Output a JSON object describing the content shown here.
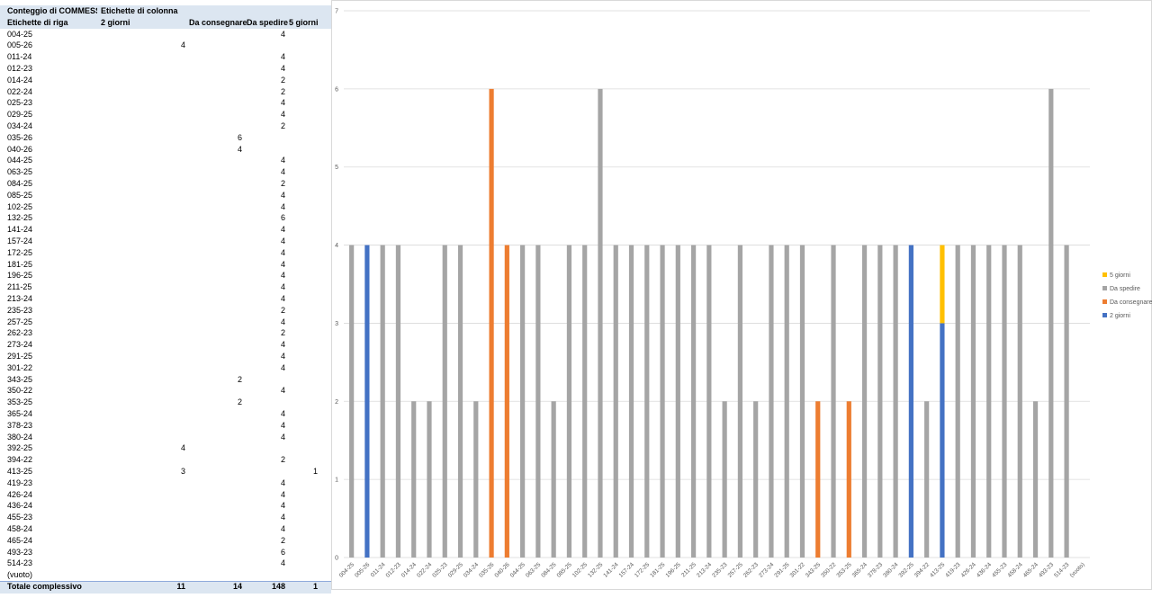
{
  "table": {
    "title": "Conteggio di COMMESSE",
    "column_label": "Etichette di colonna",
    "row_label": "Etichette di riga",
    "columns": [
      "2 giorni",
      "Da consegnare",
      "Da spedire",
      "5 giorni"
    ],
    "rows": [
      [
        "004-25",
        null,
        null,
        4,
        null
      ],
      [
        "005-26",
        4,
        null,
        null,
        null
      ],
      [
        "011-24",
        null,
        null,
        4,
        null
      ],
      [
        "012-23",
        null,
        null,
        4,
        null
      ],
      [
        "014-24",
        null,
        null,
        2,
        null
      ],
      [
        "022-24",
        null,
        null,
        2,
        null
      ],
      [
        "025-23",
        null,
        null,
        4,
        null
      ],
      [
        "029-25",
        null,
        null,
        4,
        null
      ],
      [
        "034-24",
        null,
        null,
        2,
        null
      ],
      [
        "035-26",
        null,
        6,
        null,
        null
      ],
      [
        "040-26",
        null,
        4,
        null,
        null
      ],
      [
        "044-25",
        null,
        null,
        4,
        null
      ],
      [
        "063-25",
        null,
        null,
        4,
        null
      ],
      [
        "084-25",
        null,
        null,
        2,
        null
      ],
      [
        "085-25",
        null,
        null,
        4,
        null
      ],
      [
        "102-25",
        null,
        null,
        4,
        null
      ],
      [
        "132-25",
        null,
        null,
        6,
        null
      ],
      [
        "141-24",
        null,
        null,
        4,
        null
      ],
      [
        "157-24",
        null,
        null,
        4,
        null
      ],
      [
        "172-25",
        null,
        null,
        4,
        null
      ],
      [
        "181-25",
        null,
        null,
        4,
        null
      ],
      [
        "196-25",
        null,
        null,
        4,
        null
      ],
      [
        "211-25",
        null,
        null,
        4,
        null
      ],
      [
        "213-24",
        null,
        null,
        4,
        null
      ],
      [
        "235-23",
        null,
        null,
        2,
        null
      ],
      [
        "257-25",
        null,
        null,
        4,
        null
      ],
      [
        "262-23",
        null,
        null,
        2,
        null
      ],
      [
        "273-24",
        null,
        null,
        4,
        null
      ],
      [
        "291-25",
        null,
        null,
        4,
        null
      ],
      [
        "301-22",
        null,
        null,
        4,
        null
      ],
      [
        "343-25",
        null,
        2,
        null,
        null
      ],
      [
        "350-22",
        null,
        null,
        4,
        null
      ],
      [
        "353-25",
        null,
        2,
        null,
        null
      ],
      [
        "365-24",
        null,
        null,
        4,
        null
      ],
      [
        "378-23",
        null,
        null,
        4,
        null
      ],
      [
        "380-24",
        null,
        null,
        4,
        null
      ],
      [
        "392-25",
        4,
        null,
        null,
        null
      ],
      [
        "394-22",
        null,
        null,
        2,
        null
      ],
      [
        "413-25",
        3,
        null,
        null,
        1
      ],
      [
        "419-23",
        null,
        null,
        4,
        null
      ],
      [
        "426-24",
        null,
        null,
        4,
        null
      ],
      [
        "436-24",
        null,
        null,
        4,
        null
      ],
      [
        "455-23",
        null,
        null,
        4,
        null
      ],
      [
        "458-24",
        null,
        null,
        4,
        null
      ],
      [
        "465-24",
        null,
        null,
        2,
        null
      ],
      [
        "493-23",
        null,
        null,
        6,
        null
      ],
      [
        "514-23",
        null,
        null,
        4,
        null
      ],
      [
        "(vuoto)",
        null,
        null,
        null,
        null
      ]
    ],
    "total": [
      "Totale complessivo",
      11,
      14,
      148,
      1
    ]
  },
  "chart_data": {
    "type": "stacked_bar",
    "categories": [
      "004-25",
      "005-26",
      "011-24",
      "012-23",
      "014-24",
      "022-24",
      "025-23",
      "029-25",
      "034-24",
      "035-26",
      "040-26",
      "044-25",
      "063-25",
      "084-25",
      "085-25",
      "102-25",
      "132-25",
      "141-24",
      "157-24",
      "172-25",
      "181-25",
      "196-25",
      "211-25",
      "213-24",
      "235-23",
      "257-25",
      "262-23",
      "273-24",
      "291-25",
      "301-22",
      "343-25",
      "350-22",
      "353-25",
      "365-24",
      "378-23",
      "380-24",
      "392-25",
      "394-22",
      "413-25",
      "419-23",
      "426-24",
      "436-24",
      "455-23",
      "458-24",
      "465-24",
      "493-23",
      "514-23",
      "(vuoto)"
    ],
    "series": [
      {
        "name": "2 giorni",
        "color": "#4472c4",
        "values": [
          null,
          4,
          null,
          null,
          null,
          null,
          null,
          null,
          null,
          null,
          null,
          null,
          null,
          null,
          null,
          null,
          null,
          null,
          null,
          null,
          null,
          null,
          null,
          null,
          null,
          null,
          null,
          null,
          null,
          null,
          null,
          null,
          null,
          null,
          null,
          null,
          4,
          null,
          3,
          null,
          null,
          null,
          null,
          null,
          null,
          null,
          null,
          null
        ]
      },
      {
        "name": "Da consegnare",
        "color": "#ed7d31",
        "values": [
          null,
          null,
          null,
          null,
          null,
          null,
          null,
          null,
          null,
          6,
          4,
          null,
          null,
          null,
          null,
          null,
          null,
          null,
          null,
          null,
          null,
          null,
          null,
          null,
          null,
          null,
          null,
          null,
          null,
          null,
          2,
          null,
          2,
          null,
          null,
          null,
          null,
          null,
          null,
          null,
          null,
          null,
          null,
          null,
          null,
          null,
          null,
          null
        ]
      },
      {
        "name": "Da spedire",
        "color": "#a5a5a5",
        "values": [
          4,
          null,
          4,
          4,
          2,
          2,
          4,
          4,
          2,
          null,
          null,
          4,
          4,
          2,
          4,
          4,
          6,
          4,
          4,
          4,
          4,
          4,
          4,
          4,
          2,
          4,
          2,
          4,
          4,
          4,
          null,
          4,
          null,
          4,
          4,
          4,
          null,
          2,
          null,
          4,
          4,
          4,
          4,
          4,
          2,
          6,
          4,
          null
        ]
      },
      {
        "name": "5 giorni",
        "color": "#ffc000",
        "values": [
          null,
          null,
          null,
          null,
          null,
          null,
          null,
          null,
          null,
          null,
          null,
          null,
          null,
          null,
          null,
          null,
          null,
          null,
          null,
          null,
          null,
          null,
          null,
          null,
          null,
          null,
          null,
          null,
          null,
          null,
          null,
          null,
          null,
          null,
          null,
          null,
          null,
          null,
          1,
          null,
          null,
          null,
          null,
          null,
          null,
          null,
          null,
          null
        ]
      }
    ],
    "ylim": [
      0,
      7
    ],
    "yticks": [
      0,
      1,
      2,
      3,
      4,
      5,
      6,
      7
    ],
    "grid": true,
    "legend": "right"
  }
}
